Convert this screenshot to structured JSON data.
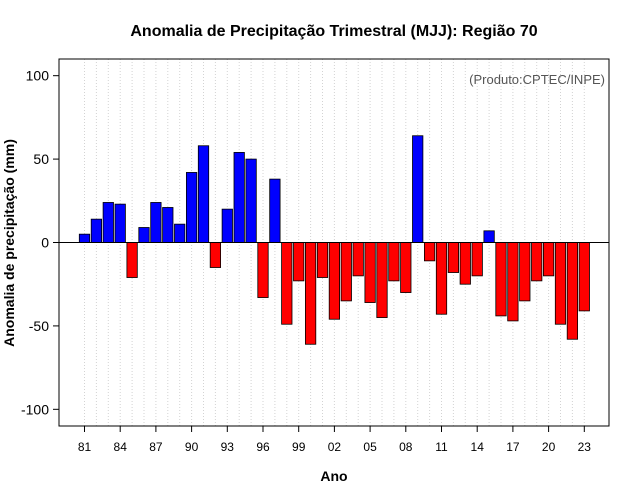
{
  "chart_data": {
    "type": "bar",
    "title": "Anomalia de Precipitação Trimestral (MJJ): Região 70",
    "xlabel": "Ano",
    "ylabel": "Anomalia de precipitação (mm)",
    "annotation": "(Produto:CPTEC/INPE)",
    "ylim": [
      -110,
      110
    ],
    "y_ticks": [
      -100,
      -50,
      0,
      50,
      100
    ],
    "x_tick_labels": [
      "81",
      "84",
      "87",
      "90",
      "93",
      "96",
      "99",
      "02",
      "05",
      "08",
      "11",
      "14",
      "17",
      "20",
      "23"
    ],
    "grid": "vertical dotted gridlines at each year",
    "categories": [
      "1981",
      "1982",
      "1983",
      "1984",
      "1985",
      "1986",
      "1987",
      "1988",
      "1989",
      "1990",
      "1991",
      "1992",
      "1993",
      "1994",
      "1995",
      "1996",
      "1997",
      "1998",
      "1999",
      "2000",
      "2001",
      "2002",
      "2003",
      "2004",
      "2005",
      "2006",
      "2007",
      "2008",
      "2009",
      "2010",
      "2011",
      "2012",
      "2013",
      "2014",
      "2015",
      "2016",
      "2017",
      "2018",
      "2019",
      "2020",
      "2021",
      "2022",
      "2023"
    ],
    "values": [
      5,
      14,
      24,
      23,
      -21,
      9,
      24,
      21,
      11,
      42,
      58,
      -15,
      20,
      54,
      50,
      -33,
      38,
      -49,
      -23,
      -61,
      -21,
      -46,
      -35,
      -20,
      -36,
      -45,
      -23,
      -30,
      64,
      -11,
      -43,
      -18,
      -25,
      -20,
      7,
      -44,
      -47,
      -35,
      -23,
      -20,
      -49,
      -58,
      -41
    ],
    "colors": {
      "positive": "#0000ff",
      "negative": "#ff0000",
      "outline": "#000000",
      "grid": "#d3d3d3"
    }
  }
}
